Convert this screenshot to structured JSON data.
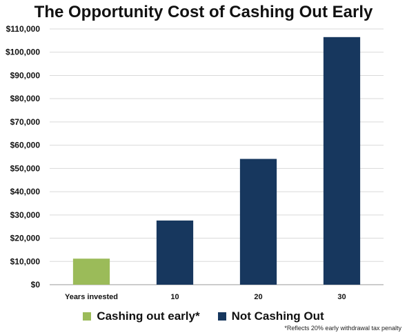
{
  "chart_data": {
    "type": "bar",
    "title": "The Opportunity Cost of Cashing Out Early",
    "categories": [
      "Years invested",
      "10",
      "20",
      "30"
    ],
    "series": [
      {
        "name": "Cashing out early*",
        "color": "#9bbb59",
        "values": [
          11200,
          null,
          null,
          null
        ]
      },
      {
        "name": "Not Cashing Out",
        "color": "#17375e",
        "values": [
          null,
          27600,
          54100,
          106500
        ]
      }
    ],
    "ylim": [
      0,
      110000
    ],
    "yticks": [
      "$0",
      "$10,000",
      "$20,000",
      "$30,000",
      "$40,000",
      "$50,000",
      "$60,000",
      "$70,000",
      "$80,000",
      "$90,000",
      "$100,000",
      "$110,000"
    ],
    "grid": true,
    "legend": "bottom",
    "footnote": "*Reflects 20% early withdrawal tax penalty"
  }
}
